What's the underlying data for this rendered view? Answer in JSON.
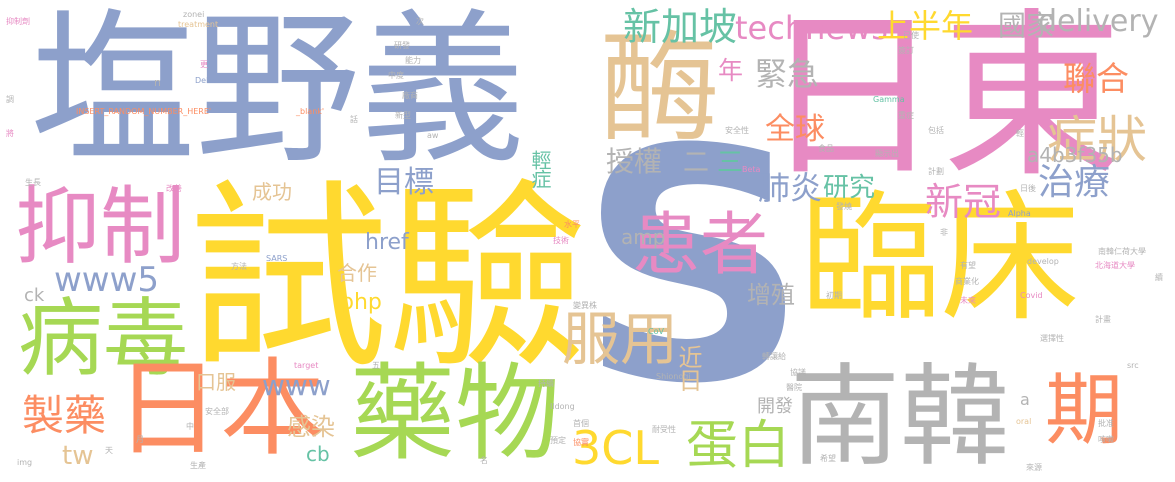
{
  "wordcloud": {
    "words": {
      "s": "S",
      "yanye": "塩野義",
      "riben_dong": "日東",
      "shiyan": "試驗",
      "linchuang": "臨床",
      "mei": "酶",
      "yizhi": "抑制",
      "bingdu": "病毒",
      "yaowu": "藥物",
      "nanhan": "南韓",
      "riben": "日本",
      "huanzhe": "患者",
      "fuyong": "服用",
      "qi": "期",
      "zhengzhuang": "症狀",
      "danbai": "蛋白",
      "zhiyao": "製藥",
      "threecl": "3CL",
      "xinjiapo": "新加坡",
      "technews": "technews",
      "shangbannian": "上半年",
      "guojia": "國家",
      "delivery": "delivery",
      "lianhe": "聯合",
      "jinji": "緊急",
      "quanqiu": "全球",
      "nian": "年",
      "mubiao": "目標",
      "shouquan": "授權",
      "er": "二",
      "san": "三",
      "feiyan": "肺炎",
      "yanjiu": "研究",
      "xinguan": "新冠",
      "zhiliao": "治療",
      "a4b3f35b": "a4b3f35b",
      "href": "href",
      "chenggong": "成功",
      "qingzheng": "輕症",
      "www5": "www5",
      "hezuo": "合作",
      "php": "php",
      "amp": "amp",
      "zengzhi": "增殖",
      "jinri": "近日",
      "ck": "ck",
      "www": "www",
      "koufu": "口服",
      "ganran": "感染",
      "kaifa": "開發",
      "tw": "tw",
      "cb": "cb",
      "a": "a",
      "yizhiji": "抑制劑",
      "zonei": "zonei",
      "treatment": "treatment",
      "gen": "更",
      "n": "n",
      "delta": "Delta",
      "insert": "INSERT_RANDOM_NUMBER_HERE'",
      "blank": "_blank'",
      "ci": "次",
      "yanfa": "研發",
      "nengli": "能力",
      "zhongdu": "中度",
      "shenghao": "廠商",
      "xinxing": "新型",
      "hua": "話",
      "jiang": "將",
      "yijing": "已使",
      "qianding": "簽訂",
      "gamma": "Gamma",
      "zhongzheng": "重症",
      "aw": "aw",
      "anquanxing": "安全性",
      "shipin": "食品",
      "xianshi": "顯示出",
      "baokuo": "包括",
      "qing": "輕",
      "jisuan": "計劃",
      "beta": "Beta",
      "shengchang": "生長",
      "gaishan": "改善",
      "fayan": "發燒",
      "ribe": "日後",
      "alpha": "Alpha",
      "shuiping": "水平",
      "jishu": "技術",
      "fei": "非",
      "nanhan_ren": "南韓仁荷大學",
      "beihai": "北海道大學",
      "sars": "SARS",
      "fangfa": "方法",
      "youwang": "有望",
      "shangyehua": "商業化",
      "develop": "develop",
      "chuqi": "初期",
      "weilai": "未來",
      "covid": "Covid",
      "tuo": "續",
      "bianyizhu": "變異株",
      "jihua": "計畫",
      "cov": "CoV",
      "zhuanrang": "轉讓給",
      "shionogi": "Shionogi",
      "xuanzexing": "選擇性",
      "src": "src",
      "target": "target",
      "wu": "五",
      "chixu": "持續",
      "xiedao": "協議",
      "yiyuan": "醫院",
      "ildong": "Ildong",
      "anquanbu": "安全部",
      "shouli": "首個",
      "naishouxing": "耐受性",
      "oral": "oral",
      "yue": "月",
      "zhong": "中",
      "yuding": "預定",
      "xieshi": "協實",
      "pizhun": "批准",
      "tian": "天",
      "img": "img",
      "shengchan": "生產",
      "ming": "名",
      "xiwang": "希望",
      "kesou": "咳嗽",
      "laiyuan": "來源",
      "diao": "調"
    }
  }
}
